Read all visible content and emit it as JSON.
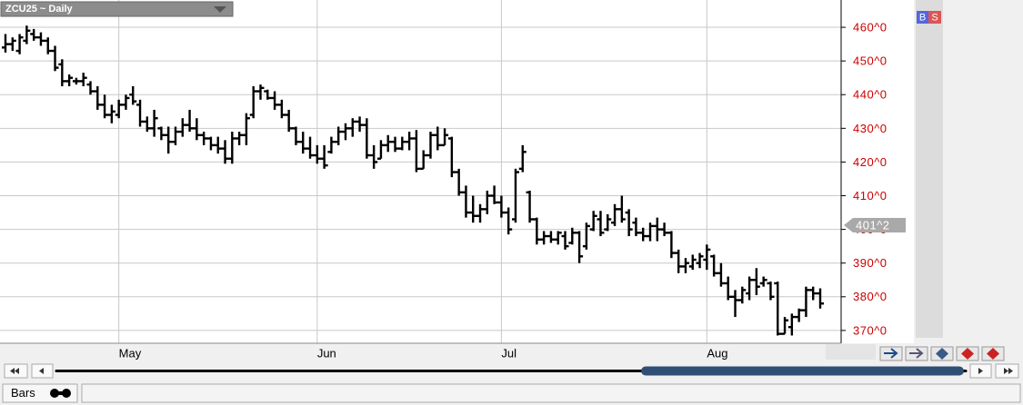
{
  "chart_data": {
    "type": "ohlc",
    "title": "ZCU25 ~ Daily",
    "ylim": [
      366.2,
      468.1
    ],
    "yticks": [
      {
        "value": 370,
        "label": "370^0"
      },
      {
        "value": 380,
        "label": "380^0"
      },
      {
        "value": 390,
        "label": "390^0"
      },
      {
        "value": 400,
        "label": "400^0"
      },
      {
        "value": 410,
        "label": "410^0"
      },
      {
        "value": 420,
        "label": "420^0"
      },
      {
        "value": 430,
        "label": "430^0"
      },
      {
        "value": 440,
        "label": "440^0"
      },
      {
        "value": 450,
        "label": "450^0"
      },
      {
        "value": 460,
        "label": "460^0"
      }
    ],
    "grid": true,
    "color": "#000000",
    "tick_color": "#cc0000",
    "price_marker": {
      "value": 401.25,
      "label": "401^2"
    },
    "categories": [
      null,
      null,
      null,
      null,
      null,
      null,
      null,
      null,
      null,
      null,
      null,
      null,
      null,
      null,
      null,
      null,
      "May",
      null,
      null,
      null,
      null,
      null,
      null,
      null,
      null,
      null,
      null,
      null,
      null,
      null,
      null,
      null,
      null,
      null,
      null,
      null,
      null,
      null,
      null,
      null,
      null,
      null,
      null,
      null,
      "Jun",
      null,
      null,
      null,
      null,
      null,
      null,
      null,
      null,
      null,
      null,
      null,
      null,
      null,
      null,
      null,
      null,
      null,
      null,
      null,
      null,
      null,
      null,
      null,
      null,
      null,
      "Jul",
      null,
      null,
      null,
      null,
      null,
      null,
      null,
      null,
      null,
      null,
      null,
      null,
      null,
      null,
      null,
      null,
      null,
      null,
      null,
      null,
      null,
      null,
      null,
      null,
      null,
      null,
      null,
      null,
      "Aug",
      null,
      null,
      null,
      null,
      null,
      null,
      null,
      null,
      null,
      null,
      null,
      null,
      null,
      null,
      null,
      null
    ],
    "ohlc": [
      [
        454,
        458,
        452.5,
        455
      ],
      [
        455,
        457,
        453,
        456
      ],
      [
        453,
        458,
        452,
        457
      ],
      [
        456,
        460.5,
        455,
        459
      ],
      [
        458,
        459.5,
        456,
        457
      ],
      [
        457,
        458.5,
        454.5,
        456
      ],
      [
        456,
        457,
        452,
        453
      ],
      [
        453,
        454.5,
        447,
        448
      ],
      [
        449,
        450.5,
        442.5,
        444
      ],
      [
        444,
        446,
        442.5,
        445
      ],
      [
        444,
        445,
        443,
        444
      ],
      [
        444,
        446.5,
        442.5,
        445
      ],
      [
        443,
        444,
        440,
        441
      ],
      [
        441,
        442.5,
        435.5,
        437
      ],
      [
        437,
        440,
        433,
        434
      ],
      [
        434,
        437,
        431.5,
        435
      ],
      [
        434,
        438.5,
        433,
        437
      ],
      [
        437,
        440,
        435.5,
        439
      ],
      [
        440,
        442.5,
        437,
        438
      ],
      [
        437,
        438.5,
        430.5,
        432
      ],
      [
        432,
        433.5,
        429,
        430
      ],
      [
        430,
        435.5,
        427.5,
        433
      ],
      [
        430,
        430.5,
        426.5,
        428
      ],
      [
        428,
        430.5,
        422.5,
        426
      ],
      [
        426,
        430.5,
        425,
        429
      ],
      [
        429,
        433,
        427.5,
        431
      ],
      [
        431,
        435.5,
        429,
        430
      ],
      [
        430,
        433,
        426.5,
        428
      ],
      [
        428,
        429,
        425,
        427
      ],
      [
        427,
        427.5,
        423.5,
        425
      ],
      [
        425,
        427.5,
        422.5,
        424
      ],
      [
        424,
        426.5,
        419.5,
        421
      ],
      [
        421,
        429,
        419.5,
        427
      ],
      [
        427,
        429,
        425,
        428
      ],
      [
        428,
        434.5,
        425,
        433
      ],
      [
        434,
        442.5,
        433,
        441
      ],
      [
        441,
        443,
        438.5,
        442
      ],
      [
        441,
        441.5,
        438.5,
        439
      ],
      [
        439,
        441,
        435.5,
        437
      ],
      [
        437,
        438.5,
        433,
        434
      ],
      [
        434,
        435.5,
        429,
        430
      ],
      [
        430,
        430.5,
        425,
        426
      ],
      [
        426,
        429,
        422.5,
        424
      ],
      [
        424,
        427.5,
        421,
        422
      ],
      [
        422,
        425,
        419.5,
        421
      ],
      [
        421,
        425,
        418,
        419
      ],
      [
        423,
        427.5,
        422.5,
        426
      ],
      [
        426,
        430.5,
        425,
        429
      ],
      [
        429,
        431.5,
        426.5,
        430
      ],
      [
        430,
        433,
        427.5,
        432
      ],
      [
        432,
        433.5,
        429,
        431
      ],
      [
        431,
        433,
        421,
        422
      ],
      [
        422,
        425,
        418,
        420
      ],
      [
        421,
        426.5,
        421,
        425
      ],
      [
        425,
        428,
        423,
        426
      ],
      [
        426,
        427.5,
        423,
        424
      ],
      [
        424,
        427.5,
        423.5,
        426
      ],
      [
        426,
        429,
        423.5,
        427
      ],
      [
        427,
        429.5,
        417,
        418
      ],
      [
        418,
        423.5,
        418,
        422
      ],
      [
        422,
        429,
        421,
        428
      ],
      [
        428,
        430.5,
        423.5,
        425
      ],
      [
        425,
        430,
        425,
        428
      ],
      [
        427,
        427.5,
        415.5,
        417
      ],
      [
        417,
        418,
        410,
        411
      ],
      [
        411,
        413,
        403.5,
        405
      ],
      [
        405,
        410,
        402,
        404
      ],
      [
        404,
        407.5,
        402,
        406
      ],
      [
        406,
        411.5,
        404.5,
        410
      ],
      [
        410,
        413,
        407.5,
        408
      ],
      [
        408,
        410,
        403.5,
        405
      ],
      [
        405,
        406.5,
        398.5,
        400
      ],
      [
        403,
        418,
        402,
        417
      ],
      [
        418,
        425,
        417,
        423
      ],
      [
        411,
        411.5,
        402,
        403
      ],
      [
        403,
        403.5,
        395.5,
        397
      ],
      [
        397,
        399.5,
        395.5,
        398
      ],
      [
        398,
        399.5,
        396,
        397
      ],
      [
        397,
        399.5,
        395.5,
        399
      ],
      [
        398,
        399.5,
        394,
        395
      ],
      [
        396,
        400.5,
        395.5,
        399
      ],
      [
        399,
        399.5,
        390,
        392
      ],
      [
        395,
        402,
        394,
        401
      ],
      [
        400,
        405.5,
        399.5,
        404
      ],
      [
        403,
        405.5,
        398,
        399
      ],
      [
        400,
        404.5,
        399.5,
        403
      ],
      [
        402,
        407.5,
        401,
        406
      ],
      [
        406,
        410,
        402,
        403
      ],
      [
        405,
        406,
        398,
        400
      ],
      [
        402,
        403.5,
        398,
        399
      ],
      [
        399,
        400.5,
        396.5,
        398
      ],
      [
        398,
        402,
        396.5,
        401
      ],
      [
        401,
        403.5,
        396.5,
        400
      ],
      [
        400,
        402,
        398,
        399
      ],
      [
        399,
        399.5,
        391.5,
        393
      ],
      [
        393,
        394,
        387,
        389
      ],
      [
        389,
        391.5,
        387,
        390
      ],
      [
        389,
        392.5,
        388,
        391
      ],
      [
        390,
        393,
        388.5,
        392
      ],
      [
        391,
        395.5,
        388,
        394
      ],
      [
        392,
        392.5,
        386,
        387
      ],
      [
        387,
        390,
        383,
        384
      ],
      [
        384,
        386,
        379,
        380
      ],
      [
        380,
        382,
        374,
        379
      ],
      [
        379,
        383,
        378,
        382
      ],
      [
        381,
        386,
        379,
        385
      ],
      [
        385,
        388.5,
        380.5,
        383
      ],
      [
        384,
        386,
        383,
        385
      ],
      [
        384,
        384.5,
        379,
        380
      ],
      [
        384,
        384.5,
        368.5,
        369
      ],
      [
        369,
        374,
        369,
        373
      ],
      [
        371,
        375,
        368.5,
        374
      ],
      [
        374,
        376.5,
        372.5,
        376
      ],
      [
        376,
        383,
        374,
        382
      ],
      [
        382,
        383,
        379,
        381
      ],
      [
        381,
        382.5,
        376.5,
        378
      ]
    ]
  },
  "ui": {
    "buy": "B",
    "sell": "S",
    "chart_style": "Bars"
  }
}
